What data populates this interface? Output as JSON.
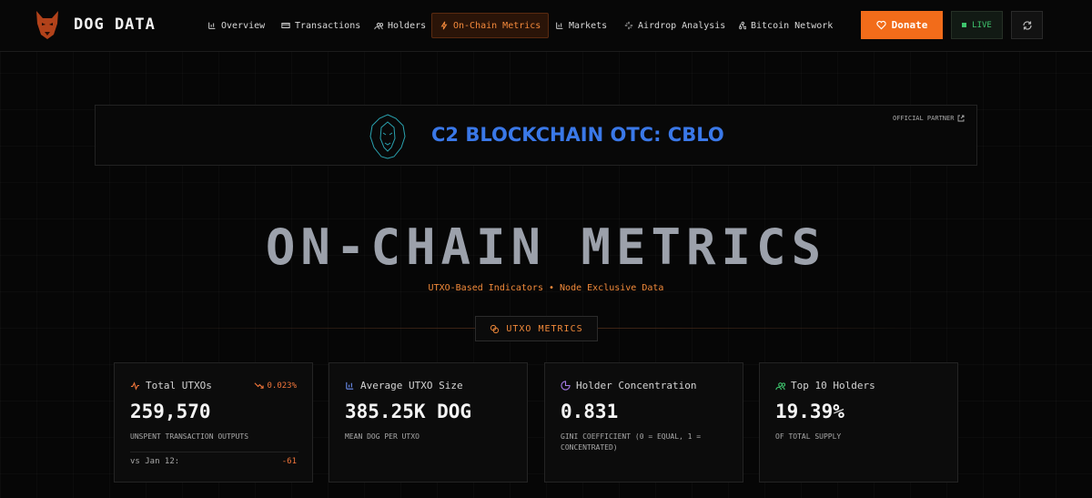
{
  "header": {
    "brand": "DOG DATA",
    "nav": [
      "Overview",
      "Transactions",
      "Holders",
      "On-Chain Metrics",
      "Markets",
      "Airdrop Analysis",
      "Bitcoin Network"
    ],
    "donate": "Donate",
    "live": "LIVE"
  },
  "banner": {
    "title": "C2 BLOCKCHAIN OTC: CBLO",
    "badge": "OFFICIAL PARTNER"
  },
  "hero": {
    "title": "ON-CHAIN METRICS",
    "subtitle": "UTXO-Based Indicators • Node Exclusive Data",
    "section": "UTXO METRICS"
  },
  "cards": [
    {
      "label": "Total UTXOs",
      "change": "0.023%",
      "value": "259,570",
      "caption": "UNSPENT TRANSACTION OUTPUTS",
      "compare_label": "vs Jan 12:",
      "compare_value": "-61"
    },
    {
      "label": "Average UTXO Size",
      "value": "385.25K DOG",
      "caption": "MEAN DOG PER UTXO"
    },
    {
      "label": "Holder Concentration",
      "value": "0.831",
      "caption": "GINI COEFFICIENT (0 = EQUAL, 1 = CONCENTRATED)"
    },
    {
      "label": "Top 10 Holders",
      "value": "19.39%",
      "caption": "OF TOTAL SUPPLY"
    }
  ]
}
